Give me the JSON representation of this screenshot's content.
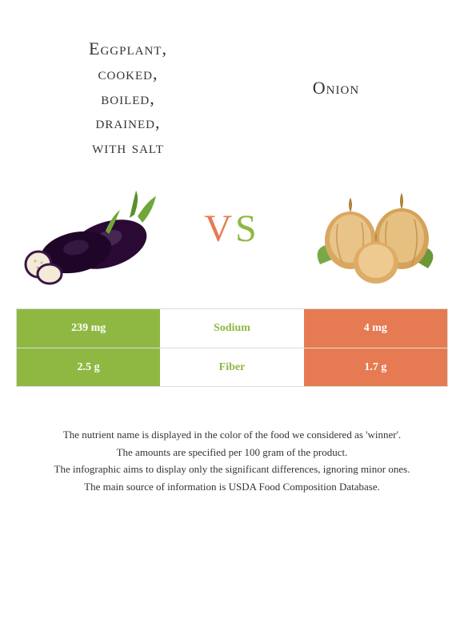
{
  "colors": {
    "green": "#8fb843",
    "orange": "#e67a52",
    "text": "#333333",
    "border": "#dddddd",
    "white": "#ffffff"
  },
  "left_food": {
    "title_lines": [
      "Eggplant,",
      "cooked,",
      "boiled,",
      "drained,",
      "with salt"
    ]
  },
  "right_food": {
    "title": "Onion"
  },
  "vs": {
    "v": "V",
    "s": "S"
  },
  "rows": [
    {
      "left": "239 mg",
      "label": "Sodium",
      "right": "4 mg",
      "winner": "left"
    },
    {
      "left": "2.5 g",
      "label": "Fiber",
      "right": "1.7 g",
      "winner": "left"
    }
  ],
  "footnotes": [
    "The nutrient name is displayed in the color of the food we considered as 'winner'.",
    "The amounts are specified per 100 gram of the product.",
    "The infographic aims to display only the significant differences, ignoring minor ones.",
    "The main source of information is USDA Food Composition Database."
  ]
}
